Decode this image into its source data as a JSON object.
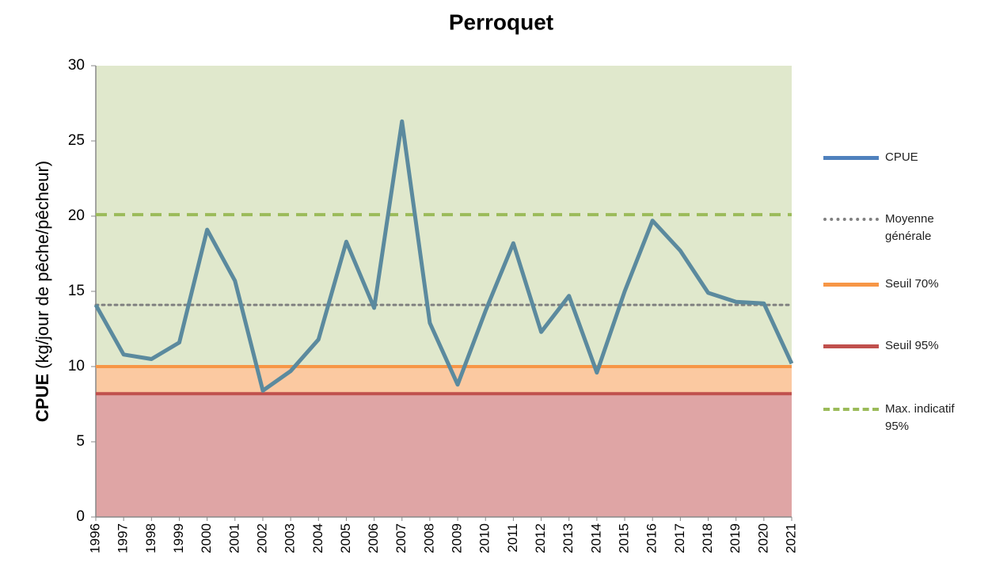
{
  "chart_data": {
    "type": "line",
    "title": "Perroquet",
    "ylabel_bold": "CPUE",
    "ylabel": "(kg/jour de pêche/pêcheur)",
    "x": [
      1996,
      1997,
      1998,
      1999,
      2000,
      2001,
      2002,
      2003,
      2004,
      2005,
      2006,
      2007,
      2008,
      2009,
      2010,
      2011,
      2012,
      2013,
      2014,
      2015,
      2016,
      2017,
      2018,
      2019,
      2020,
      2021
    ],
    "xlim": [
      1996,
      2021
    ],
    "ylim": [
      0,
      30
    ],
    "yticks": [
      0,
      5,
      10,
      15,
      20,
      25,
      30
    ],
    "series": [
      {
        "name": "CPUE",
        "color": "#5b8a9e",
        "legend_color": "#4f81bd",
        "values": [
          14.1,
          10.8,
          10.5,
          11.6,
          19.1,
          15.7,
          8.4,
          9.7,
          11.8,
          18.3,
          13.9,
          26.3,
          12.9,
          8.8,
          13.7,
          18.2,
          12.3,
          14.7,
          9.6,
          15.0,
          19.7,
          17.7,
          14.9,
          14.3,
          14.2,
          10.2
        ]
      }
    ],
    "reference_lines": [
      {
        "name": "Moyenne générale",
        "value": 14.1,
        "color": "#808080",
        "style": "dotted"
      },
      {
        "name": "Seuil 70%",
        "value": 10,
        "color": "#f79646",
        "style": "solid",
        "band_color": "#fbc9a1"
      },
      {
        "name": "Seuil 95%",
        "value": 8.2,
        "color": "#c0504d",
        "style": "solid",
        "band_color": "#dfa5a5"
      },
      {
        "name": "Max. indicatif 95%",
        "value": 20.1,
        "color": "#9bbb59",
        "style": "dashed"
      }
    ],
    "background_color": "#e0e8cc",
    "legend": "right"
  }
}
